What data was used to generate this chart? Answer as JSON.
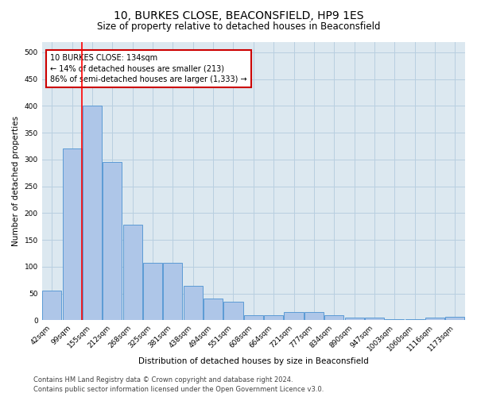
{
  "title": "10, BURKES CLOSE, BEACONSFIELD, HP9 1ES",
  "subtitle": "Size of property relative to detached houses in Beaconsfield",
  "xlabel": "Distribution of detached houses by size in Beaconsfield",
  "ylabel": "Number of detached properties",
  "categories": [
    "42sqm",
    "99sqm",
    "155sqm",
    "212sqm",
    "268sqm",
    "325sqm",
    "381sqm",
    "438sqm",
    "494sqm",
    "551sqm",
    "608sqm",
    "664sqm",
    "721sqm",
    "777sqm",
    "834sqm",
    "890sqm",
    "947sqm",
    "1003sqm",
    "1060sqm",
    "1116sqm",
    "1173sqm"
  ],
  "values": [
    55,
    320,
    400,
    295,
    178,
    108,
    107,
    65,
    40,
    35,
    10,
    10,
    16,
    16,
    9,
    5,
    5,
    2,
    2,
    5,
    7
  ],
  "bar_color": "#aec6e8",
  "bar_edge_color": "#5b9bd5",
  "red_line_x": 1.5,
  "annotation_text": "10 BURKES CLOSE: 134sqm\n← 14% of detached houses are smaller (213)\n86% of semi-detached houses are larger (1,333) →",
  "annotation_box_color": "#ffffff",
  "annotation_box_edge_color": "#cc0000",
  "footer_line1": "Contains HM Land Registry data © Crown copyright and database right 2024.",
  "footer_line2": "Contains public sector information licensed under the Open Government Licence v3.0.",
  "ylim": [
    0,
    520
  ],
  "yticks": [
    0,
    50,
    100,
    150,
    200,
    250,
    300,
    350,
    400,
    450,
    500
  ],
  "grid_color": "#b8cfe0",
  "background_color": "#dce8f0",
  "fig_background_color": "#ffffff",
  "title_fontsize": 10,
  "subtitle_fontsize": 8.5,
  "label_fontsize": 7.5,
  "tick_fontsize": 6.5,
  "footer_fontsize": 6.0,
  "ann_fontsize": 7.0
}
